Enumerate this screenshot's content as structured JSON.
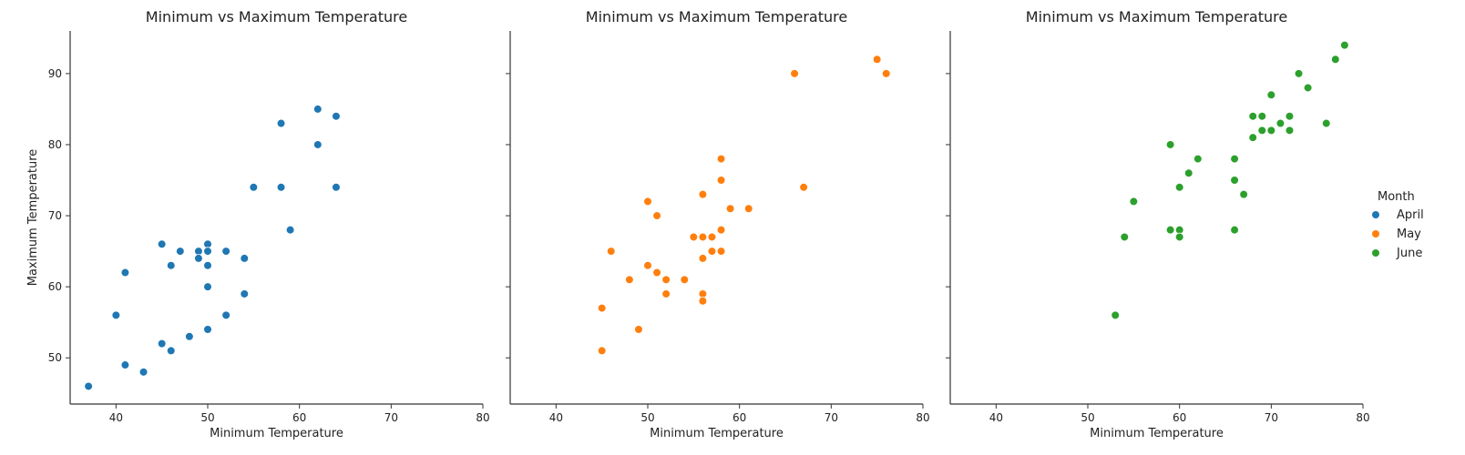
{
  "chart_data": [
    {
      "type": "scatter",
      "title": "Minimum vs Maximum Temperature",
      "xlabel": "Minimum Temperature",
      "ylabel": "Maximum Temperature",
      "xlim": [
        35,
        80
      ],
      "ylim": [
        43.5,
        96
      ],
      "xticks": [
        "40",
        "50",
        "60",
        "70",
        "80"
      ],
      "yticks": [
        "50",
        "60",
        "70",
        "80",
        "90"
      ],
      "series": [
        {
          "name": "April",
          "color": "#1f77b4",
          "points": [
            [
              37,
              46
            ],
            [
              40,
              56
            ],
            [
              41,
              62
            ],
            [
              41,
              49
            ],
            [
              43,
              48
            ],
            [
              45,
              66
            ],
            [
              45,
              52
            ],
            [
              46,
              63
            ],
            [
              46,
              51
            ],
            [
              47,
              65
            ],
            [
              48,
              53
            ],
            [
              49,
              65
            ],
            [
              49,
              64
            ],
            [
              50,
              66
            ],
            [
              50,
              65
            ],
            [
              50,
              63
            ],
            [
              50,
              60
            ],
            [
              50,
              54
            ],
            [
              52,
              65
            ],
            [
              52,
              56
            ],
            [
              54,
              64
            ],
            [
              54,
              59
            ],
            [
              55,
              74
            ],
            [
              58,
              83
            ],
            [
              58,
              74
            ],
            [
              59,
              68
            ],
            [
              62,
              85
            ],
            [
              62,
              80
            ],
            [
              64,
              84
            ],
            [
              64,
              74
            ]
          ]
        }
      ]
    },
    {
      "type": "scatter",
      "title": "Minimum vs Maximum Temperature",
      "xlabel": "Minimum Temperature",
      "ylabel": "",
      "xlim": [
        35,
        80
      ],
      "ylim": [
        43.5,
        96
      ],
      "xticks": [
        "40",
        "50",
        "60",
        "70",
        "80"
      ],
      "yticks": [],
      "series": [
        {
          "name": "May",
          "color": "#ff7f0e",
          "points": [
            [
              45,
              57
            ],
            [
              45,
              51
            ],
            [
              46,
              65
            ],
            [
              48,
              61
            ],
            [
              49,
              54
            ],
            [
              50,
              72
            ],
            [
              50,
              63
            ],
            [
              51,
              70
            ],
            [
              51,
              62
            ],
            [
              52,
              61
            ],
            [
              52,
              59
            ],
            [
              54,
              61
            ],
            [
              55,
              67
            ],
            [
              56,
              73
            ],
            [
              56,
              67
            ],
            [
              56,
              64
            ],
            [
              56,
              59
            ],
            [
              56,
              58
            ],
            [
              57,
              67
            ],
            [
              57,
              65
            ],
            [
              58,
              78
            ],
            [
              58,
              75
            ],
            [
              58,
              68
            ],
            [
              58,
              65
            ],
            [
              59,
              71
            ],
            [
              61,
              71
            ],
            [
              66,
              90
            ],
            [
              67,
              74
            ],
            [
              75,
              92
            ],
            [
              76,
              90
            ]
          ]
        }
      ]
    },
    {
      "type": "scatter",
      "title": "Minimum vs Maximum Temperature",
      "xlabel": "Minimum Temperature",
      "ylabel": "",
      "xlim": [
        35,
        80
      ],
      "ylim": [
        43.5,
        96
      ],
      "xticks": [
        "40",
        "50",
        "60",
        "70",
        "80"
      ],
      "yticks": [],
      "series": [
        {
          "name": "June",
          "color": "#2ca02c",
          "points": [
            [
              53,
              56
            ],
            [
              54,
              67
            ],
            [
              55,
              72
            ],
            [
              59,
              80
            ],
            [
              59,
              68
            ],
            [
              60,
              74
            ],
            [
              60,
              68
            ],
            [
              60,
              67
            ],
            [
              61,
              76
            ],
            [
              62,
              78
            ],
            [
              66,
              78
            ],
            [
              66,
              75
            ],
            [
              66,
              68
            ],
            [
              67,
              73
            ],
            [
              68,
              84
            ],
            [
              68,
              81
            ],
            [
              69,
              84
            ],
            [
              69,
              82
            ],
            [
              70,
              87
            ],
            [
              70,
              82
            ],
            [
              71,
              83
            ],
            [
              72,
              84
            ],
            [
              72,
              82
            ],
            [
              73,
              90
            ],
            [
              74,
              88
            ],
            [
              76,
              83
            ],
            [
              77,
              92
            ],
            [
              78,
              94
            ]
          ]
        }
      ]
    }
  ],
  "legend": {
    "title": "Month",
    "placement": "right",
    "entries": [
      {
        "label": "April",
        "color": "#1f77b4"
      },
      {
        "label": "May",
        "color": "#ff7f0e"
      },
      {
        "label": "June",
        "color": "#2ca02c"
      }
    ]
  }
}
